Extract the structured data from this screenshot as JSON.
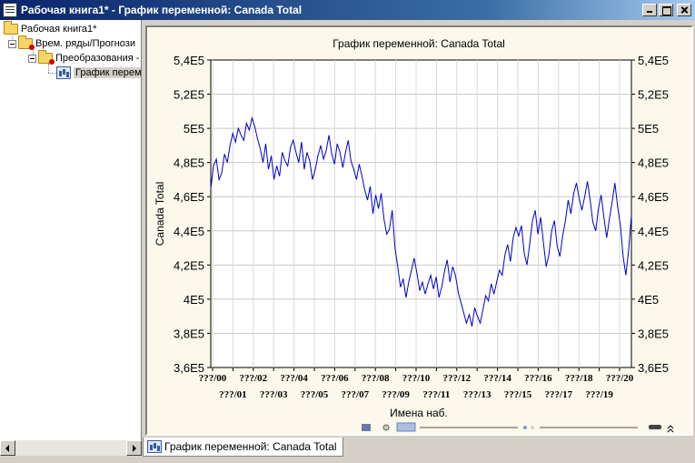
{
  "window": {
    "title": "Рабочая книга1* - График переменной: Canada Total"
  },
  "tree": {
    "items": [
      {
        "label": "Рабочая книга1*"
      },
      {
        "label": "Врем. ряды/Прогнози"
      },
      {
        "label": "Преобразования -"
      },
      {
        "label": "График перем"
      }
    ]
  },
  "tabs": [
    {
      "label": "График переменной: Canada Total"
    }
  ],
  "colors": {
    "series": "#0000c8",
    "plot_background": "#ffffff",
    "frame_background": "#fcf8eb"
  },
  "chart_data": {
    "type": "line",
    "title": "График переменной: Canada Total",
    "xlabel": "Имена наб.",
    "ylabel": "Canada Total",
    "ylim": [
      360000,
      540000
    ],
    "y_ticks": [
      "3,6E5",
      "3,8E5",
      "4E5",
      "4,2E5",
      "4,4E5",
      "4,6E5",
      "4,8E5",
      "5E5",
      "5,2E5",
      "5,4E5"
    ],
    "x_ticks_top": [
      "???/00",
      "???/02",
      "???/04",
      "???/06",
      "???/08",
      "???/10",
      "???/12",
      "???/14",
      "???/16",
      "???/18",
      "???/20"
    ],
    "x_ticks_bottom": [
      "???/01",
      "???/03",
      "???/05",
      "???/07",
      "???/09",
      "???/11",
      "???/13",
      "???/15",
      "???/17",
      "???/19"
    ],
    "grid": true,
    "series": [
      {
        "values": [
          465000,
          478000,
          482000,
          470000,
          474000,
          485000,
          480000,
          490000,
          497000,
          492000,
          500000,
          496000,
          493000,
          503000,
          499000,
          506000,
          501000,
          494000,
          488000,
          480000,
          491000,
          476000,
          484000,
          470000,
          478000,
          472000,
          486000,
          481000,
          478000,
          489000,
          493000,
          486000,
          480000,
          492000,
          476000,
          486000,
          481000,
          470000,
          476000,
          484000,
          490000,
          482000,
          487000,
          496000,
          485000,
          479000,
          491000,
          486000,
          477000,
          486000,
          493000,
          481000,
          476000,
          470000,
          479000,
          472000,
          464000,
          458000,
          466000,
          450000,
          461000,
          453000,
          462000,
          447000,
          438000,
          441000,
          452000,
          430000,
          419000,
          407000,
          412000,
          401000,
          410000,
          417000,
          424000,
          415000,
          405000,
          410000,
          403000,
          409000,
          414000,
          406000,
          413000,
          401000,
          407000,
          416000,
          423000,
          410000,
          419000,
          414000,
          404000,
          398000,
          392000,
          386000,
          391000,
          384000,
          395000,
          390000,
          386000,
          394000,
          402000,
          399000,
          409000,
          403000,
          410000,
          417000,
          414000,
          426000,
          432000,
          422000,
          436000,
          442000,
          437000,
          443000,
          427000,
          420000,
          432000,
          446000,
          452000,
          438000,
          448000,
          433000,
          419000,
          426000,
          440000,
          446000,
          431000,
          425000,
          437000,
          446000,
          458000,
          450000,
          462000,
          468000,
          459000,
          452000,
          460000,
          469000,
          458000,
          445000,
          440000,
          453000,
          461000,
          448000,
          436000,
          447000,
          457000,
          468000,
          454000,
          443000,
          425000,
          414000,
          429000,
          449000
        ]
      }
    ]
  }
}
